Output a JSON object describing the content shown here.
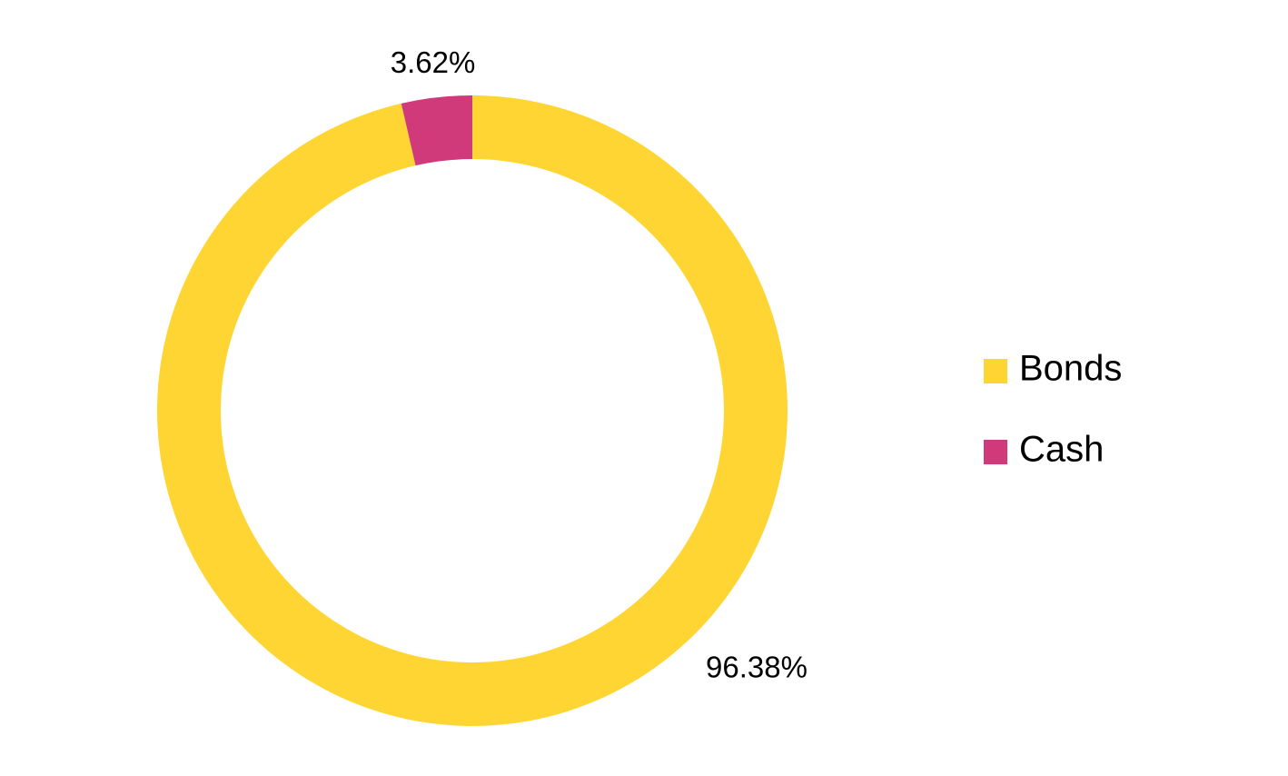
{
  "chart_data": {
    "type": "donut",
    "categories": [
      "Bonds",
      "Cash"
    ],
    "values": [
      96.38,
      3.62
    ],
    "value_labels": [
      "96.38%",
      "3.62%"
    ],
    "colors": [
      "#fed533",
      "#d13a7a"
    ],
    "legend": "right"
  }
}
